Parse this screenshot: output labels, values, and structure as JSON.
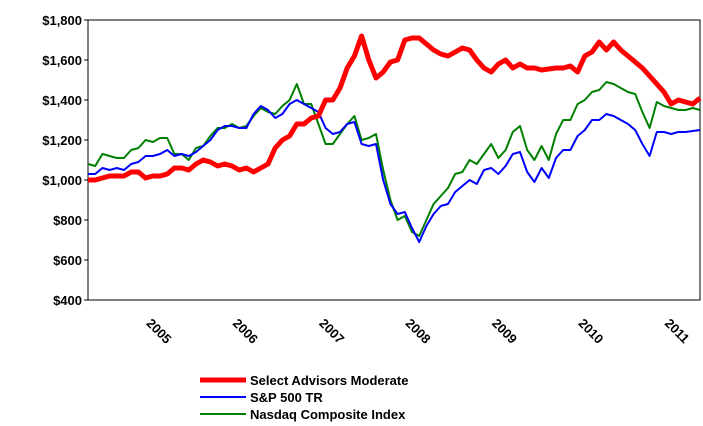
{
  "chart_data": {
    "type": "line",
    "categories": [
      null,
      null,
      null,
      null,
      null,
      null,
      null,
      null,
      "2005",
      null,
      null,
      null,
      null,
      null,
      null,
      null,
      null,
      null,
      null,
      null,
      "2006",
      null,
      null,
      null,
      null,
      null,
      null,
      null,
      null,
      null,
      null,
      null,
      "2007",
      null,
      null,
      null,
      null,
      null,
      null,
      null,
      null,
      null,
      null,
      null,
      "2008",
      null,
      null,
      null,
      null,
      null,
      null,
      null,
      null,
      null,
      null,
      null,
      "2009",
      null,
      null,
      null,
      null,
      null,
      null,
      null,
      null,
      null,
      null,
      null,
      "2010",
      null,
      null,
      null,
      null,
      null,
      null,
      null,
      null,
      null,
      null,
      null,
      "2011",
      null,
      null,
      null,
      null,
      null
    ],
    "series": [
      {
        "name": "Select Advisors Moderate",
        "color": "#ff0000",
        "width": 5,
        "values": [
          1000,
          1000,
          1010,
          1020,
          1020,
          1020,
          1040,
          1040,
          1010,
          1020,
          1020,
          1030,
          1060,
          1060,
          1050,
          1080,
          1100,
          1090,
          1070,
          1080,
          1070,
          1050,
          1060,
          1040,
          1060,
          1080,
          1160,
          1200,
          1220,
          1280,
          1280,
          1310,
          1320,
          1400,
          1400,
          1460,
          1560,
          1620,
          1720,
          1600,
          1510,
          1540,
          1590,
          1600,
          1700,
          1710,
          1710,
          1680,
          1650,
          1630,
          1620,
          1640,
          1660,
          1650,
          1600,
          1560,
          1540,
          1580,
          1600,
          1560,
          1580,
          1560,
          1560,
          1550,
          1555,
          1560,
          1560,
          1570,
          1540,
          1620,
          1640,
          1690,
          1650,
          1690,
          1650,
          1620,
          1590,
          1560,
          1520,
          1480,
          1440,
          1380,
          1400,
          1390,
          1380,
          1410
        ]
      },
      {
        "name": "S&P 500 TR",
        "color": "#0000ff",
        "width": 2,
        "values": [
          1030,
          1030,
          1060,
          1050,
          1060,
          1050,
          1080,
          1090,
          1120,
          1120,
          1130,
          1150,
          1120,
          1130,
          1120,
          1140,
          1170,
          1200,
          1250,
          1270,
          1270,
          1260,
          1260,
          1330,
          1370,
          1350,
          1310,
          1330,
          1380,
          1400,
          1380,
          1360,
          1340,
          1260,
          1230,
          1240,
          1280,
          1290,
          1180,
          1170,
          1180,
          1000,
          880,
          830,
          840,
          760,
          690,
          770,
          830,
          870,
          880,
          940,
          970,
          1000,
          980,
          1050,
          1060,
          1030,
          1070,
          1130,
          1140,
          1040,
          990,
          1060,
          1010,
          1110,
          1150,
          1150,
          1220,
          1250,
          1300,
          1300,
          1330,
          1320,
          1300,
          1280,
          1250,
          1180,
          1120,
          1240,
          1240,
          1230,
          1240,
          1240,
          1245,
          1250
        ]
      },
      {
        "name": "Nasdaq Composite Index",
        "color": "#008000",
        "width": 2,
        "values": [
          1080,
          1070,
          1130,
          1120,
          1110,
          1110,
          1150,
          1160,
          1200,
          1190,
          1210,
          1210,
          1130,
          1130,
          1100,
          1160,
          1170,
          1220,
          1260,
          1260,
          1280,
          1260,
          1270,
          1320,
          1360,
          1340,
          1330,
          1370,
          1400,
          1480,
          1380,
          1380,
          1280,
          1180,
          1180,
          1230,
          1280,
          1320,
          1200,
          1210,
          1230,
          1050,
          900,
          800,
          820,
          740,
          720,
          800,
          880,
          920,
          960,
          1030,
          1040,
          1100,
          1080,
          1130,
          1180,
          1110,
          1150,
          1240,
          1270,
          1150,
          1100,
          1170,
          1100,
          1230,
          1300,
          1300,
          1380,
          1400,
          1440,
          1450,
          1490,
          1480,
          1460,
          1440,
          1430,
          1340,
          1260,
          1390,
          1370,
          1360,
          1350,
          1350,
          1360,
          1350
        ]
      }
    ],
    "ylim": [
      400,
      1800
    ],
    "yticks": [
      {
        "value": 400,
        "label": "$400"
      },
      {
        "value": 600,
        "label": "$600"
      },
      {
        "value": 800,
        "label": "$800"
      },
      {
        "value": 1000,
        "label": "$1,000"
      },
      {
        "value": 1200,
        "label": "$1,200"
      },
      {
        "value": 1400,
        "label": "$1,400"
      },
      {
        "value": 1600,
        "label": "$1,600"
      },
      {
        "value": 1800,
        "label": "$1,800"
      }
    ],
    "grid": false,
    "legend": "bottom"
  }
}
